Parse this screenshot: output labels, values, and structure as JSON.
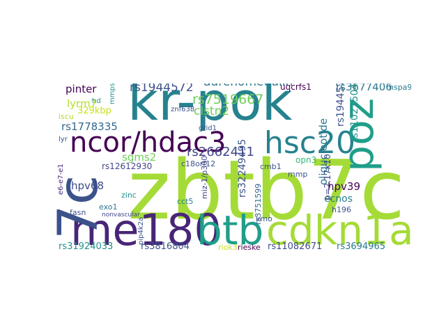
{
  "cloud": {
    "words": [
      {
        "text": "kr-pok",
        "color": "#26828e"
      },
      {
        "text": "zbtb7c",
        "color": "#a5db36"
      },
      {
        "text": "me180",
        "color": "#482677"
      },
      {
        "text": "btb",
        "color": "#1f9e89"
      },
      {
        "text": "cdkn1a",
        "color": "#a5db36"
      },
      {
        "text": "ncor/hdac3",
        "color": "#440154"
      },
      {
        "text": "hsc20",
        "color": "#26828e"
      },
      {
        "text": "poz",
        "color": "#1f9e89"
      },
      {
        "text": "7c",
        "color": "#3b528b"
      },
      {
        "text": "rs1944572",
        "color": "#3b528b"
      },
      {
        "text": "adrenomedulin",
        "color": "#2a788e"
      },
      {
        "text": "rs7519667",
        "color": "#6ece58"
      },
      {
        "text": "clstn2",
        "color": "#6ece58"
      },
      {
        "text": "rs2662411",
        "color": "#414487"
      },
      {
        "text": "rs3677406",
        "color": "#2a788e"
      },
      {
        "text": "uqcrfs1",
        "color": "#440154"
      },
      {
        "text": "pinter",
        "color": "#440154"
      },
      {
        "text": "lyrm7",
        "color": "#b5de2b"
      },
      {
        "text": "329kbp",
        "color": "#c8e020"
      },
      {
        "text": "rs1778335",
        "color": "#31688e"
      },
      {
        "text": "sgms2",
        "color": "#6ece58"
      },
      {
        "text": "hpv68",
        "color": "#3e4a89"
      },
      {
        "text": "rs12612930",
        "color": "#414487"
      },
      {
        "text": "rs32249495",
        "color": "#3b528b"
      },
      {
        "text": "oligucleotide",
        "color": "#2a788e"
      },
      {
        "text": "rs1944577",
        "color": "#3b528b"
      },
      {
        "text": "rs11021504",
        "color": "#21918c"
      },
      {
        "text": "hspa9",
        "color": "#2a788e"
      },
      {
        "text": "hpv39",
        "color": "#440154"
      },
      {
        "text": "ecnos",
        "color": "#26828e"
      },
      {
        "text": "h196",
        "color": "#3b528b"
      },
      {
        "text": "p=2.17x10",
        "color": "#414487"
      },
      {
        "text": "opn3",
        "color": "#35b779"
      },
      {
        "text": "cmb1",
        "color": "#3b528b"
      },
      {
        "text": "mmp",
        "color": "#3b528b"
      },
      {
        "text": "rs3751599",
        "color": "#31688e"
      },
      {
        "text": "miz-1/p300",
        "color": "#414487"
      },
      {
        "text": "c18orf12",
        "color": "#3b528b"
      },
      {
        "text": "cct5",
        "color": "#26828e"
      },
      {
        "text": "zinc",
        "color": "#21918c"
      },
      {
        "text": "exo1",
        "color": "#2a788e"
      },
      {
        "text": "fasn",
        "color": "#3b528b"
      },
      {
        "text": "pip4k2a",
        "color": "#3b528b"
      },
      {
        "text": "kmo",
        "color": "#3b528b"
      },
      {
        "text": "rs31924033",
        "color": "#21918c"
      },
      {
        "text": "rs3816804",
        "color": "#3b528b"
      },
      {
        "text": "riok3",
        "color": "#c8e020"
      },
      {
        "text": "rieske",
        "color": "#440154"
      },
      {
        "text": "rs11082671",
        "color": "#3e4a89"
      },
      {
        "text": "rs3694965",
        "color": "#2a788e"
      },
      {
        "text": "e6-e7-e1",
        "color": "#482677"
      },
      {
        "text": "iscu",
        "color": "#b5de2b"
      },
      {
        "text": "lyr",
        "color": "#3b528b"
      },
      {
        "text": "znf638",
        "color": "#3b528b"
      },
      {
        "text": "grid1",
        "color": "#3b528b"
      },
      {
        "text": "mmps-8",
        "color": "#21918c"
      },
      {
        "text": "hd",
        "color": "#21918c"
      },
      {
        "text": "nonvascular",
        "color": "#414487"
      }
    ]
  }
}
